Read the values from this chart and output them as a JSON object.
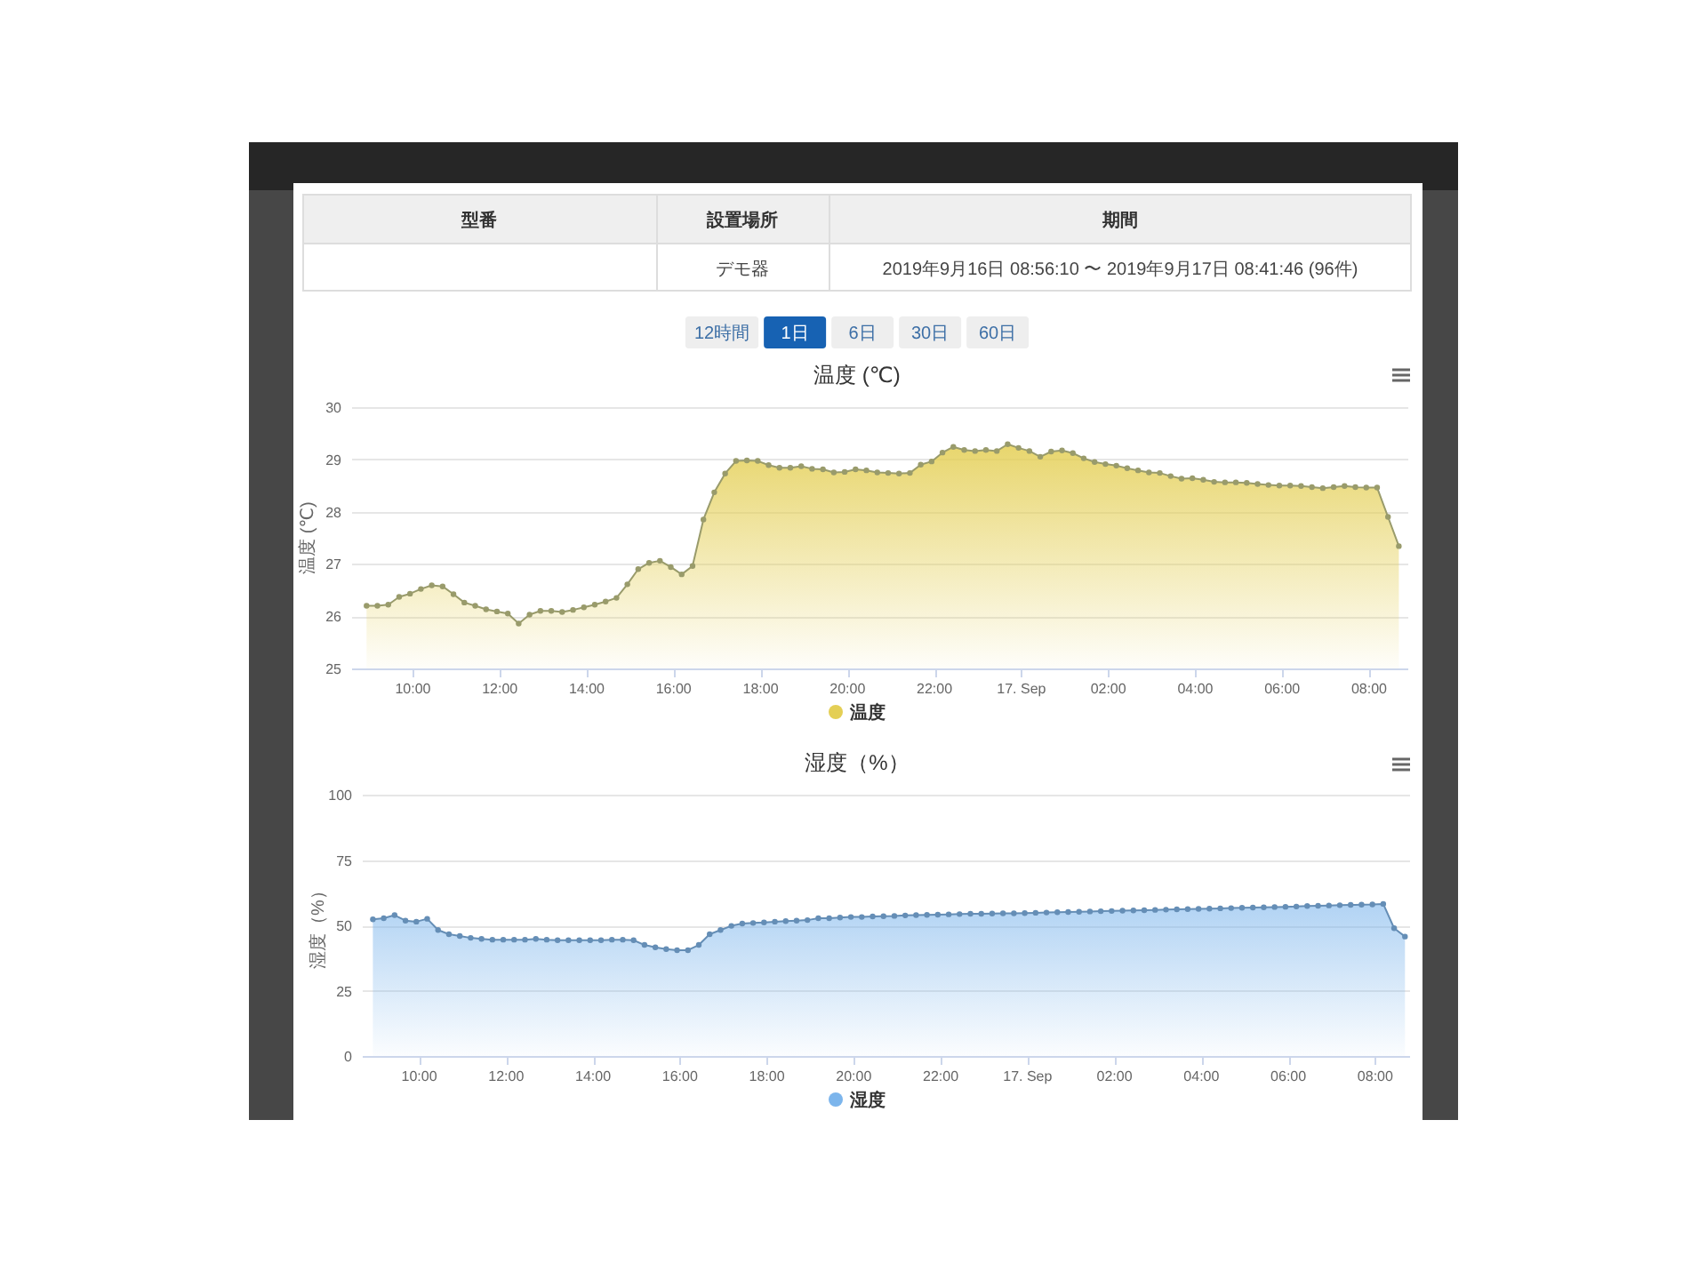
{
  "chart_data": [
    {
      "type": "other",
      "annotations": [
        "型番",
        "設置場所",
        "期間",
        "デモ器",
        "2019年9月16日 08:56:10 〜 2019年9月17日 08:41:46 (96件)",
        "12時間",
        "1日",
        "6日",
        "30日",
        "60日"
      ]
    },
    {
      "type": "area",
      "title": "温度 (℃)",
      "ylabel": "温度 (℃)",
      "x": [
        "2019-09-16T08:56",
        "2019-09-16T09:11",
        "2019-09-16T09:26",
        "2019-09-16T09:41",
        "2019-09-16T09:56",
        "2019-09-16T10:11",
        "2019-09-16T10:26",
        "2019-09-16T10:41",
        "2019-09-16T10:56",
        "2019-09-16T11:11",
        "2019-09-16T11:26",
        "2019-09-16T11:41",
        "2019-09-16T11:56",
        "2019-09-16T12:11",
        "2019-09-16T12:26",
        "2019-09-16T12:41",
        "2019-09-16T12:56",
        "2019-09-16T13:11",
        "2019-09-16T13:26",
        "2019-09-16T13:41",
        "2019-09-16T13:56",
        "2019-09-16T14:11",
        "2019-09-16T14:26",
        "2019-09-16T14:41",
        "2019-09-16T14:56",
        "2019-09-16T15:11",
        "2019-09-16T15:26",
        "2019-09-16T15:41",
        "2019-09-16T15:56",
        "2019-09-16T16:11",
        "2019-09-16T16:26",
        "2019-09-16T16:41",
        "2019-09-16T16:56",
        "2019-09-16T17:11",
        "2019-09-16T17:26",
        "2019-09-16T17:41",
        "2019-09-16T17:56",
        "2019-09-16T18:11",
        "2019-09-16T18:26",
        "2019-09-16T18:41",
        "2019-09-16T18:56",
        "2019-09-16T19:11",
        "2019-09-16T19:26",
        "2019-09-16T19:41",
        "2019-09-16T19:56",
        "2019-09-16T20:11",
        "2019-09-16T20:26",
        "2019-09-16T20:41",
        "2019-09-16T20:56",
        "2019-09-16T21:11",
        "2019-09-16T21:26",
        "2019-09-16T21:41",
        "2019-09-16T21:56",
        "2019-09-16T22:11",
        "2019-09-16T22:26",
        "2019-09-16T22:41",
        "2019-09-16T22:56",
        "2019-09-16T23:11",
        "2019-09-16T23:26",
        "2019-09-16T23:41",
        "2019-09-16T23:56",
        "2019-09-17T00:11",
        "2019-09-17T00:26",
        "2019-09-17T00:41",
        "2019-09-17T00:56",
        "2019-09-17T01:11",
        "2019-09-17T01:26",
        "2019-09-17T01:41",
        "2019-09-17T01:56",
        "2019-09-17T02:11",
        "2019-09-17T02:26",
        "2019-09-17T02:41",
        "2019-09-17T02:56",
        "2019-09-17T03:11",
        "2019-09-17T03:26",
        "2019-09-17T03:41",
        "2019-09-17T03:56",
        "2019-09-17T04:11",
        "2019-09-17T04:26",
        "2019-09-17T04:41",
        "2019-09-17T04:56",
        "2019-09-17T05:11",
        "2019-09-17T05:26",
        "2019-09-17T05:41",
        "2019-09-17T05:56",
        "2019-09-17T06:11",
        "2019-09-17T06:26",
        "2019-09-17T06:41",
        "2019-09-17T06:56",
        "2019-09-17T07:11",
        "2019-09-17T07:26",
        "2019-09-17T07:41",
        "2019-09-17T07:56",
        "2019-09-17T08:11",
        "2019-09-17T08:26",
        "2019-09-17T08:41"
      ],
      "series": [
        {
          "name": "温度",
          "color": "#e4cf55",
          "values": [
            26.2,
            26.2,
            26.22,
            26.37,
            26.43,
            26.52,
            26.59,
            26.57,
            26.42,
            26.26,
            26.2,
            26.13,
            26.09,
            26.05,
            25.86,
            26.03,
            26.1,
            26.1,
            26.08,
            26.12,
            26.17,
            26.22,
            26.28,
            26.35,
            26.61,
            26.9,
            27.02,
            27.06,
            26.94,
            26.8,
            26.96,
            27.85,
            28.37,
            28.73,
            28.97,
            28.98,
            28.97,
            28.89,
            28.84,
            28.84,
            28.87,
            28.82,
            28.81,
            28.75,
            28.76,
            28.81,
            28.79,
            28.75,
            28.74,
            28.73,
            28.74,
            28.9,
            28.96,
            29.13,
            29.24,
            29.18,
            29.16,
            29.18,
            29.16,
            29.29,
            29.22,
            29.16,
            29.05,
            29.15,
            29.17,
            29.12,
            29.02,
            28.95,
            28.91,
            28.88,
            28.83,
            28.79,
            28.75,
            28.74,
            28.68,
            28.63,
            28.64,
            28.61,
            28.57,
            28.56,
            28.56,
            28.55,
            28.53,
            28.51,
            28.5,
            28.5,
            28.49,
            28.47,
            28.45,
            28.47,
            28.49,
            28.47,
            28.46,
            28.46,
            27.9,
            27.34
          ]
        }
      ],
      "xlim": [
        "2019-09-16T08:36",
        "2019-09-17T08:54"
      ],
      "xticks": [
        {
          "value": "2019-09-16T10:00",
          "label": "10:00"
        },
        {
          "value": "2019-09-16T12:00",
          "label": "12:00"
        },
        {
          "value": "2019-09-16T14:00",
          "label": "14:00"
        },
        {
          "value": "2019-09-16T16:00",
          "label": "16:00"
        },
        {
          "value": "2019-09-16T18:00",
          "label": "18:00"
        },
        {
          "value": "2019-09-16T20:00",
          "label": "20:00"
        },
        {
          "value": "2019-09-16T22:00",
          "label": "22:00"
        },
        {
          "value": "2019-09-17T00:00",
          "label": "17. Sep"
        },
        {
          "value": "2019-09-17T02:00",
          "label": "02:00"
        },
        {
          "value": "2019-09-17T04:00",
          "label": "04:00"
        },
        {
          "value": "2019-09-17T06:00",
          "label": "06:00"
        },
        {
          "value": "2019-09-17T08:00",
          "label": "08:00"
        }
      ],
      "ylim": [
        25,
        30
      ],
      "yticks": [
        25,
        26,
        27,
        28,
        29,
        30
      ],
      "grid": "y",
      "legend": "bottom",
      "marker": "circle"
    },
    {
      "type": "area",
      "title": "湿度（%）",
      "ylabel": "湿度（%）",
      "x": [
        "2019-09-16T08:56",
        "2019-09-16T09:11",
        "2019-09-16T09:26",
        "2019-09-16T09:41",
        "2019-09-16T09:56",
        "2019-09-16T10:11",
        "2019-09-16T10:26",
        "2019-09-16T10:41",
        "2019-09-16T10:56",
        "2019-09-16T11:11",
        "2019-09-16T11:26",
        "2019-09-16T11:41",
        "2019-09-16T11:56",
        "2019-09-16T12:11",
        "2019-09-16T12:26",
        "2019-09-16T12:41",
        "2019-09-16T12:56",
        "2019-09-16T13:11",
        "2019-09-16T13:26",
        "2019-09-16T13:41",
        "2019-09-16T13:56",
        "2019-09-16T14:11",
        "2019-09-16T14:26",
        "2019-09-16T14:41",
        "2019-09-16T14:56",
        "2019-09-16T15:11",
        "2019-09-16T15:26",
        "2019-09-16T15:41",
        "2019-09-16T15:56",
        "2019-09-16T16:11",
        "2019-09-16T16:26",
        "2019-09-16T16:41",
        "2019-09-16T16:56",
        "2019-09-16T17:11",
        "2019-09-16T17:26",
        "2019-09-16T17:41",
        "2019-09-16T17:56",
        "2019-09-16T18:11",
        "2019-09-16T18:26",
        "2019-09-16T18:41",
        "2019-09-16T18:56",
        "2019-09-16T19:11",
        "2019-09-16T19:26",
        "2019-09-16T19:41",
        "2019-09-16T19:56",
        "2019-09-16T20:11",
        "2019-09-16T20:26",
        "2019-09-16T20:41",
        "2019-09-16T20:56",
        "2019-09-16T21:11",
        "2019-09-16T21:26",
        "2019-09-16T21:41",
        "2019-09-16T21:56",
        "2019-09-16T22:11",
        "2019-09-16T22:26",
        "2019-09-16T22:41",
        "2019-09-16T22:56",
        "2019-09-16T23:11",
        "2019-09-16T23:26",
        "2019-09-16T23:41",
        "2019-09-16T23:56",
        "2019-09-17T00:11",
        "2019-09-17T00:26",
        "2019-09-17T00:41",
        "2019-09-17T00:56",
        "2019-09-17T01:11",
        "2019-09-17T01:26",
        "2019-09-17T01:41",
        "2019-09-17T01:56",
        "2019-09-17T02:11",
        "2019-09-17T02:26",
        "2019-09-17T02:41",
        "2019-09-17T02:56",
        "2019-09-17T03:11",
        "2019-09-17T03:26",
        "2019-09-17T03:41",
        "2019-09-17T03:56",
        "2019-09-17T04:11",
        "2019-09-17T04:26",
        "2019-09-17T04:41",
        "2019-09-17T04:56",
        "2019-09-17T05:11",
        "2019-09-17T05:26",
        "2019-09-17T05:41",
        "2019-09-17T05:56",
        "2019-09-17T06:11",
        "2019-09-17T06:26",
        "2019-09-17T06:41",
        "2019-09-17T06:56",
        "2019-09-17T07:11",
        "2019-09-17T07:26",
        "2019-09-17T07:41",
        "2019-09-17T07:56",
        "2019-09-17T08:11",
        "2019-09-17T08:26",
        "2019-09-17T08:41"
      ],
      "series": [
        {
          "name": "湿度",
          "color": "#7cb5ec",
          "values": [
            52.3,
            52.7,
            53.9,
            51.8,
            51.4,
            52.5,
            48.2,
            46.6,
            45.9,
            45.2,
            44.8,
            44.5,
            44.5,
            44.5,
            44.5,
            44.8,
            44.5,
            44.3,
            44.3,
            44.3,
            44.3,
            44.3,
            44.5,
            44.5,
            44.3,
            42.5,
            41.6,
            40.9,
            40.5,
            40.5,
            42.5,
            46.6,
            48.2,
            49.8,
            50.7,
            50.9,
            51.1,
            51.4,
            51.6,
            51.8,
            52.0,
            52.7,
            52.7,
            53.0,
            53.2,
            53.2,
            53.4,
            53.5,
            53.6,
            53.8,
            53.9,
            54.0,
            54.1,
            54.2,
            54.3,
            54.4,
            54.4,
            54.5,
            54.6,
            54.6,
            54.7,
            54.8,
            54.9,
            55.0,
            55.1,
            55.2,
            55.3,
            55.4,
            55.5,
            55.6,
            55.7,
            55.8,
            55.9,
            56.0,
            56.1,
            56.2,
            56.3,
            56.4,
            56.5,
            56.6,
            56.7,
            56.8,
            56.9,
            57.0,
            57.1,
            57.2,
            57.4,
            57.5,
            57.6,
            57.7,
            57.8,
            57.9,
            58.0,
            58.2,
            48.9,
            45.7
          ]
        }
      ],
      "xlim": [
        "2019-09-16T08:42",
        "2019-09-17T08:48"
      ],
      "xticks": [
        {
          "value": "2019-09-16T10:00",
          "label": "10:00"
        },
        {
          "value": "2019-09-16T12:00",
          "label": "12:00"
        },
        {
          "value": "2019-09-16T14:00",
          "label": "14:00"
        },
        {
          "value": "2019-09-16T16:00",
          "label": "16:00"
        },
        {
          "value": "2019-09-16T18:00",
          "label": "18:00"
        },
        {
          "value": "2019-09-16T20:00",
          "label": "20:00"
        },
        {
          "value": "2019-09-16T22:00",
          "label": "22:00"
        },
        {
          "value": "2019-09-17T00:00",
          "label": "17. Sep"
        },
        {
          "value": "2019-09-17T02:00",
          "label": "02:00"
        },
        {
          "value": "2019-09-17T04:00",
          "label": "04:00"
        },
        {
          "value": "2019-09-17T06:00",
          "label": "06:00"
        },
        {
          "value": "2019-09-17T08:00",
          "label": "08:00"
        }
      ],
      "ylim": [
        0,
        100
      ],
      "yticks": [
        0,
        25,
        50,
        75,
        100
      ],
      "grid": "y",
      "legend": "bottom",
      "marker": "circle"
    }
  ]
}
